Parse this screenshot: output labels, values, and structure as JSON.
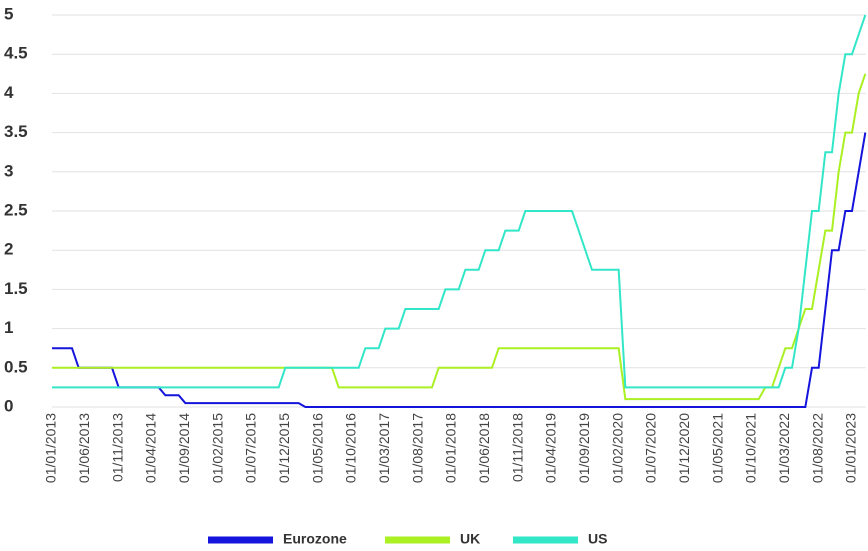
{
  "chart_data": {
    "type": "line",
    "categories": [
      "01/01/2013",
      null,
      null,
      null,
      null,
      "01/06/2013",
      null,
      null,
      null,
      null,
      "01/11/2013",
      null,
      null,
      null,
      null,
      "01/04/2014",
      null,
      null,
      null,
      null,
      "01/09/2014",
      null,
      null,
      null,
      null,
      "01/02/2015",
      null,
      null,
      null,
      null,
      "01/07/2015",
      null,
      null,
      null,
      null,
      "01/12/2015",
      null,
      null,
      null,
      null,
      "01/05/2016",
      null,
      null,
      null,
      null,
      "01/10/2016",
      null,
      null,
      null,
      null,
      "01/03/2017",
      null,
      null,
      null,
      null,
      "01/08/2017",
      null,
      null,
      null,
      null,
      "01/01/2018",
      null,
      null,
      null,
      null,
      "01/06/2018",
      null,
      null,
      null,
      null,
      "01/11/2018",
      null,
      null,
      null,
      null,
      "01/04/2019",
      null,
      null,
      null,
      null,
      "01/09/2019",
      null,
      null,
      null,
      null,
      "01/02/2020",
      null,
      null,
      null,
      null,
      "01/07/2020",
      null,
      null,
      null,
      null,
      "01/12/2020",
      null,
      null,
      null,
      null,
      "01/05/2021",
      null,
      null,
      null,
      null,
      "01/10/2021",
      null,
      null,
      null,
      null,
      "01/03/2022",
      null,
      null,
      null,
      null,
      "01/08/2022",
      null,
      null,
      null,
      null,
      "01/01/2023",
      null,
      null
    ],
    "series": [
      {
        "name": "Eurozone",
        "color": "#1414dc",
        "values": [
          0.75,
          0.75,
          0.75,
          0.75,
          0.5,
          0.5,
          0.5,
          0.5,
          0.5,
          0.5,
          0.25,
          0.25,
          0.25,
          0.25,
          0.25,
          0.25,
          0.25,
          0.15,
          0.15,
          0.15,
          0.05,
          0.05,
          0.05,
          0.05,
          0.05,
          0.05,
          0.05,
          0.05,
          0.05,
          0.05,
          0.05,
          0.05,
          0.05,
          0.05,
          0.05,
          0.05,
          0.05,
          0.05,
          0,
          0,
          0,
          0,
          0,
          0,
          0,
          0,
          0,
          0,
          0,
          0,
          0,
          0,
          0,
          0,
          0,
          0,
          0,
          0,
          0,
          0,
          0,
          0,
          0,
          0,
          0,
          0,
          0,
          0,
          0,
          0,
          0,
          0,
          0,
          0,
          0,
          0,
          0,
          0,
          0,
          0,
          0,
          0,
          0,
          0,
          0,
          0,
          0,
          0,
          0,
          0,
          0,
          0,
          0,
          0,
          0,
          0,
          0,
          0,
          0,
          0,
          0,
          0,
          0,
          0,
          0,
          0,
          0,
          0,
          0,
          0,
          0,
          0,
          0,
          0,
          0.5,
          0.5,
          1.25,
          2.0,
          2.0,
          2.5,
          2.5,
          3.0,
          3.5
        ]
      },
      {
        "name": "UK",
        "color": "#aaf022",
        "values": [
          0.5,
          0.5,
          0.5,
          0.5,
          0.5,
          0.5,
          0.5,
          0.5,
          0.5,
          0.5,
          0.5,
          0.5,
          0.5,
          0.5,
          0.5,
          0.5,
          0.5,
          0.5,
          0.5,
          0.5,
          0.5,
          0.5,
          0.5,
          0.5,
          0.5,
          0.5,
          0.5,
          0.5,
          0.5,
          0.5,
          0.5,
          0.5,
          0.5,
          0.5,
          0.5,
          0.5,
          0.5,
          0.5,
          0.5,
          0.5,
          0.5,
          0.5,
          0.5,
          0.25,
          0.25,
          0.25,
          0.25,
          0.25,
          0.25,
          0.25,
          0.25,
          0.25,
          0.25,
          0.25,
          0.25,
          0.25,
          0.25,
          0.25,
          0.5,
          0.5,
          0.5,
          0.5,
          0.5,
          0.5,
          0.5,
          0.5,
          0.5,
          0.75,
          0.75,
          0.75,
          0.75,
          0.75,
          0.75,
          0.75,
          0.75,
          0.75,
          0.75,
          0.75,
          0.75,
          0.75,
          0.75,
          0.75,
          0.75,
          0.75,
          0.75,
          0.75,
          0.1,
          0.1,
          0.1,
          0.1,
          0.1,
          0.1,
          0.1,
          0.1,
          0.1,
          0.1,
          0.1,
          0.1,
          0.1,
          0.1,
          0.1,
          0.1,
          0.1,
          0.1,
          0.1,
          0.1,
          0.1,
          0.25,
          0.25,
          0.5,
          0.75,
          0.75,
          1.0,
          1.25,
          1.25,
          1.75,
          2.25,
          2.25,
          3.0,
          3.5,
          3.5,
          4.0,
          4.25
        ]
      },
      {
        "name": "US",
        "color": "#32e6c8",
        "values": [
          0.25,
          0.25,
          0.25,
          0.25,
          0.25,
          0.25,
          0.25,
          0.25,
          0.25,
          0.25,
          0.25,
          0.25,
          0.25,
          0.25,
          0.25,
          0.25,
          0.25,
          0.25,
          0.25,
          0.25,
          0.25,
          0.25,
          0.25,
          0.25,
          0.25,
          0.25,
          0.25,
          0.25,
          0.25,
          0.25,
          0.25,
          0.25,
          0.25,
          0.25,
          0.25,
          0.5,
          0.5,
          0.5,
          0.5,
          0.5,
          0.5,
          0.5,
          0.5,
          0.5,
          0.5,
          0.5,
          0.5,
          0.75,
          0.75,
          0.75,
          1.0,
          1.0,
          1.0,
          1.25,
          1.25,
          1.25,
          1.25,
          1.25,
          1.25,
          1.5,
          1.5,
          1.5,
          1.75,
          1.75,
          1.75,
          2.0,
          2.0,
          2.0,
          2.25,
          2.25,
          2.25,
          2.5,
          2.5,
          2.5,
          2.5,
          2.5,
          2.5,
          2.5,
          2.5,
          2.25,
          2.0,
          1.75,
          1.75,
          1.75,
          1.75,
          1.75,
          0.25,
          0.25,
          0.25,
          0.25,
          0.25,
          0.25,
          0.25,
          0.25,
          0.25,
          0.25,
          0.25,
          0.25,
          0.25,
          0.25,
          0.25,
          0.25,
          0.25,
          0.25,
          0.25,
          0.25,
          0.25,
          0.25,
          0.25,
          0.25,
          0.5,
          0.5,
          1.0,
          1.75,
          2.5,
          2.5,
          3.25,
          3.25,
          4.0,
          4.5,
          4.5,
          4.75,
          5.0
        ]
      }
    ],
    "ylim": [
      0,
      5
    ],
    "yticks": [
      0,
      0.5,
      1,
      1.5,
      2,
      2.5,
      3,
      3.5,
      4,
      4.5,
      5
    ],
    "grid": true,
    "legend": "bottom"
  }
}
